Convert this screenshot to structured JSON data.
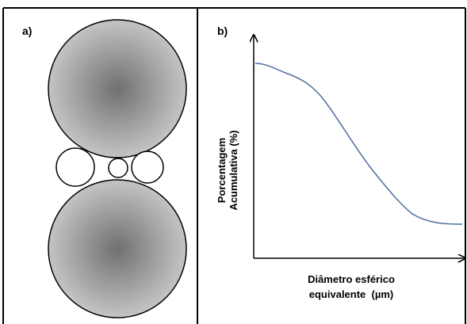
{
  "panels": [
    {
      "label": "a)"
    },
    {
      "label": "b)",
      "y_axis_label": [
        "Porcentagem",
        "Acumulativa (%)"
      ],
      "x_axis_label": [
        "Diâmetro esférico",
        "equivalente  (µm)"
      ]
    }
  ]
}
